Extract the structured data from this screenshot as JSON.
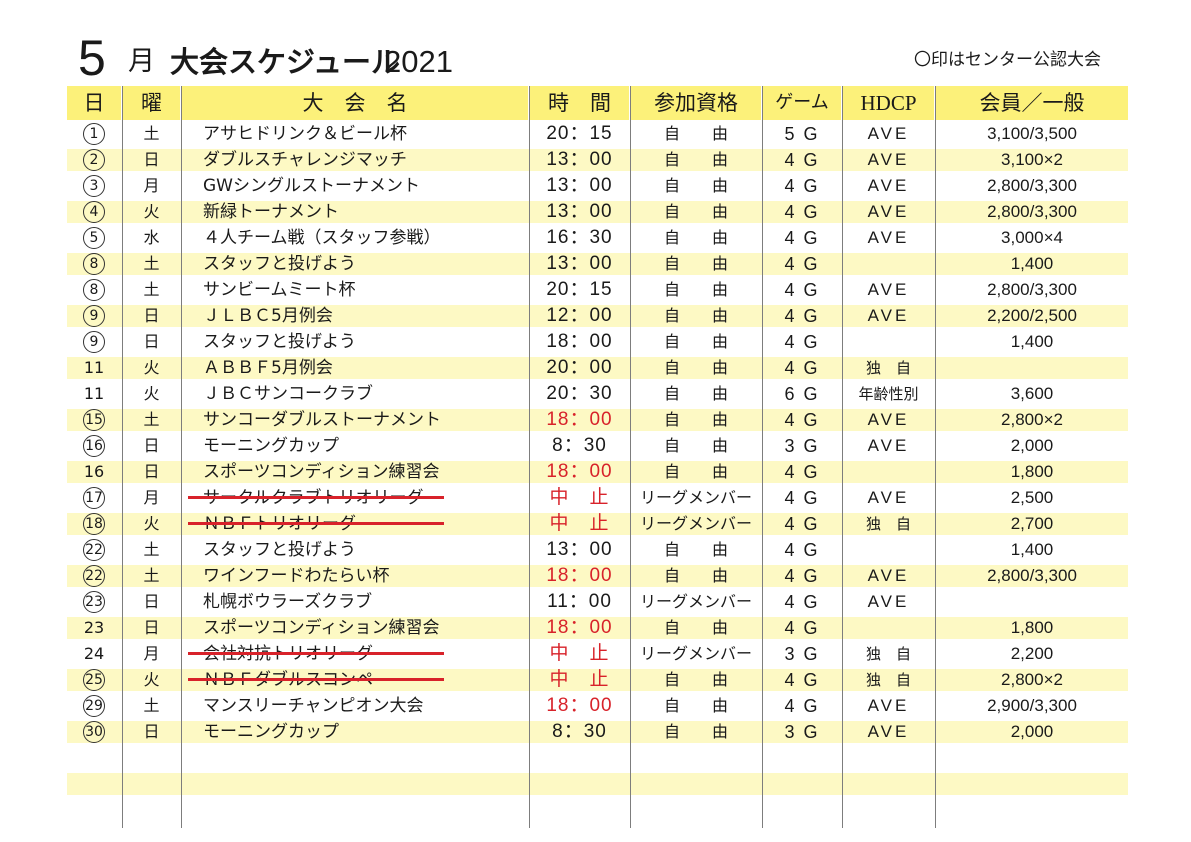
{
  "header": {
    "month_number": "5",
    "month_unit": "月",
    "title": "大会スケジュール",
    "year": "2021",
    "note": "〇印はセンター公認大会"
  },
  "columns": {
    "day": "日",
    "dow": "曜",
    "name": "大　会　名",
    "time": "時　間",
    "qualification": "参加資格",
    "game": "ゲーム",
    "hdcp": "HDCP",
    "price": "会員／一般"
  },
  "colors": {
    "header_bg": "#fcf17a",
    "band_bg": "#fdf9c4",
    "red": "#d8222a"
  },
  "rows": [
    {
      "day": "1",
      "circled": true,
      "dow": "土",
      "name": "アサヒドリンク＆ビール杯",
      "time": "20：15",
      "time_red": false,
      "qual": "自　　由",
      "game": "5 G",
      "hdcp": "AVE",
      "price": "3,100/3,500",
      "struck": false
    },
    {
      "day": "2",
      "circled": true,
      "dow": "日",
      "name": "ダブルスチャレンジマッチ",
      "time": "13：00",
      "time_red": false,
      "qual": "自　　由",
      "game": "4 G",
      "hdcp": "AVE",
      "price": "3,100×2",
      "struck": false
    },
    {
      "day": "3",
      "circled": true,
      "dow": "月",
      "name": "GWシングルストーナメント",
      "time": "13：00",
      "time_red": false,
      "qual": "自　　由",
      "game": "4 G",
      "hdcp": "AVE",
      "price": "2,800/3,300",
      "struck": false
    },
    {
      "day": "4",
      "circled": true,
      "dow": "火",
      "name": "新緑トーナメント",
      "time": "13：00",
      "time_red": false,
      "qual": "自　　由",
      "game": "4 G",
      "hdcp": "AVE",
      "price": "2,800/3,300",
      "struck": false
    },
    {
      "day": "5",
      "circled": true,
      "dow": "水",
      "name": "４人チーム戦（スタッフ参戦）",
      "time": "16：30",
      "time_red": false,
      "qual": "自　　由",
      "game": "4 G",
      "hdcp": "AVE",
      "price": "3,000×4",
      "struck": false
    },
    {
      "day": "8",
      "circled": true,
      "dow": "土",
      "name": "スタッフと投げよう",
      "time": "13：00",
      "time_red": false,
      "qual": "自　　由",
      "game": "4 G",
      "hdcp": "",
      "price": "1,400",
      "struck": false
    },
    {
      "day": "8",
      "circled": true,
      "dow": "土",
      "name": "サンビームミート杯",
      "time": "20：15",
      "time_red": false,
      "qual": "自　　由",
      "game": "4 G",
      "hdcp": "AVE",
      "price": "2,800/3,300",
      "struck": false
    },
    {
      "day": "9",
      "circled": true,
      "dow": "日",
      "name": "ＪＬＢＣ5月例会",
      "time": "12：00",
      "time_red": false,
      "qual": "自　　由",
      "game": "4 G",
      "hdcp": "AVE",
      "price": "2,200/2,500",
      "struck": false
    },
    {
      "day": "9",
      "circled": true,
      "dow": "日",
      "name": "スタッフと投げよう",
      "time": "18：00",
      "time_red": false,
      "qual": "自　　由",
      "game": "4 G",
      "hdcp": "",
      "price": "1,400",
      "struck": false
    },
    {
      "day": "11",
      "circled": false,
      "dow": "火",
      "name": "ＡＢＢＦ5月例会",
      "time": "20：00",
      "time_red": false,
      "qual": "自　　由",
      "game": "4 G",
      "hdcp": "独　自",
      "price": "",
      "struck": false
    },
    {
      "day": "11",
      "circled": false,
      "dow": "火",
      "name": "ＪＢＣサンコークラブ",
      "time": "20：30",
      "time_red": false,
      "qual": "自　　由",
      "game": "6 G",
      "hdcp": "年齢性別",
      "price": "3,600",
      "struck": false
    },
    {
      "day": "15",
      "circled": true,
      "dow": "土",
      "name": "サンコーダブルストーナメント",
      "time": "18：00",
      "time_red": true,
      "qual": "自　　由",
      "game": "4 G",
      "hdcp": "AVE",
      "price": "2,800×2",
      "struck": false
    },
    {
      "day": "16",
      "circled": true,
      "dow": "日",
      "name": "モーニングカップ",
      "time": "8：30",
      "time_red": false,
      "qual": "自　　由",
      "game": "3 G",
      "hdcp": "AVE",
      "price": "2,000",
      "struck": false
    },
    {
      "day": "16",
      "circled": false,
      "dow": "日",
      "name": "スポーツコンディション練習会",
      "time": "18：00",
      "time_red": true,
      "qual": "自　　由",
      "game": "4 G",
      "hdcp": "",
      "price": "1,800",
      "struck": false
    },
    {
      "day": "17",
      "circled": true,
      "dow": "月",
      "name": "サークルクラブトリオリーグ",
      "time": "中　止",
      "time_red": true,
      "qual": "リーグメンバー",
      "game": "4 G",
      "hdcp": "AVE",
      "price": "2,500",
      "struck": true
    },
    {
      "day": "18",
      "circled": true,
      "dow": "火",
      "name": "ＮＢＦトリオリーグ",
      "time": "中　止",
      "time_red": true,
      "qual": "リーグメンバー",
      "game": "4 G",
      "hdcp": "独　自",
      "price": "2,700",
      "struck": true
    },
    {
      "day": "22",
      "circled": true,
      "dow": "土",
      "name": "スタッフと投げよう",
      "time": "13：00",
      "time_red": false,
      "qual": "自　　由",
      "game": "4 G",
      "hdcp": "",
      "price": "1,400",
      "struck": false
    },
    {
      "day": "22",
      "circled": true,
      "dow": "土",
      "name": "ワインフードわたらい杯",
      "time": "18：00",
      "time_red": true,
      "qual": "自　　由",
      "game": "4 G",
      "hdcp": "AVE",
      "price": "2,800/3,300",
      "struck": false
    },
    {
      "day": "23",
      "circled": true,
      "dow": "日",
      "name": "札幌ボウラーズクラブ",
      "time": "11：00",
      "time_red": false,
      "qual": "リーグメンバー",
      "game": "4 G",
      "hdcp": "AVE",
      "price": "",
      "struck": false
    },
    {
      "day": "23",
      "circled": false,
      "dow": "日",
      "name": "スポーツコンディション練習会",
      "time": "18：00",
      "time_red": true,
      "qual": "自　　由",
      "game": "4 G",
      "hdcp": "",
      "price": "1,800",
      "struck": false
    },
    {
      "day": "24",
      "circled": false,
      "dow": "月",
      "name": "会社対抗トリオリーグ",
      "time": "中　止",
      "time_red": true,
      "qual": "リーグメンバー",
      "game": "3 G",
      "hdcp": "独　自",
      "price": "2,200",
      "struck": true
    },
    {
      "day": "25",
      "circled": true,
      "dow": "火",
      "name": "ＮＢＦダブルスコンペ",
      "time": "中　止",
      "time_red": true,
      "qual": "自　　由",
      "game": "4 G",
      "hdcp": "独　自",
      "price": "2,800×2",
      "struck": true
    },
    {
      "day": "29",
      "circled": true,
      "dow": "土",
      "name": "マンスリーチャンピオン大会",
      "time": "18：00",
      "time_red": true,
      "qual": "自　　由",
      "game": "4 G",
      "hdcp": "AVE",
      "price": "2,900/3,300",
      "struck": false
    },
    {
      "day": "30",
      "circled": true,
      "dow": "日",
      "name": "モーニングカップ",
      "time": "8：30",
      "time_red": false,
      "qual": "自　　由",
      "game": "3 G",
      "hdcp": "AVE",
      "price": "2,000",
      "struck": false
    }
  ]
}
